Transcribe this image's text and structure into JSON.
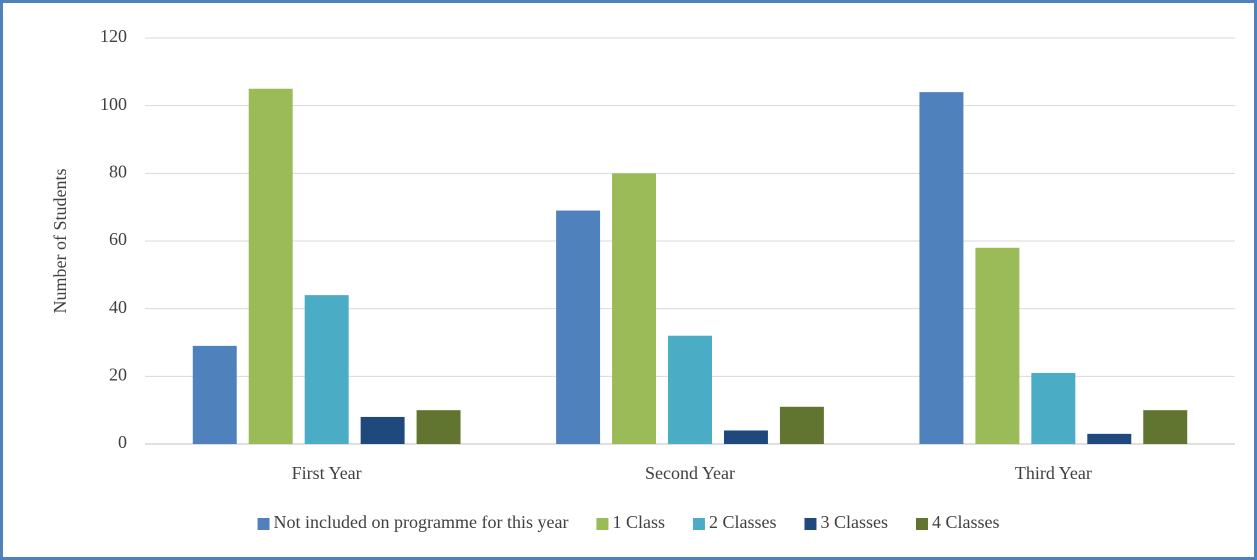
{
  "chart_data": {
    "type": "bar",
    "ylabel": "Number of Students",
    "categories": [
      "First Year",
      "Second Year",
      "Third Year"
    ],
    "series": [
      {
        "name": "Not included on programme for this year",
        "color": "#4f81bd",
        "values": [
          29,
          69,
          104
        ]
      },
      {
        "name": "1 Class",
        "color": "#9bbb59",
        "values": [
          105,
          80,
          58
        ]
      },
      {
        "name": "2 Classes",
        "color": "#4bacc6",
        "values": [
          44,
          32,
          21
        ]
      },
      {
        "name": "3 Classes",
        "color": "#1f497d",
        "values": [
          8,
          4,
          3
        ]
      },
      {
        "name": "4 Classes",
        "color": "#627530",
        "values": [
          10,
          11,
          10
        ]
      }
    ],
    "ylim": [
      0,
      120
    ],
    "yticks": [
      0,
      20,
      40,
      60,
      80,
      100,
      120
    ],
    "grid": true,
    "legend": "bottom"
  }
}
